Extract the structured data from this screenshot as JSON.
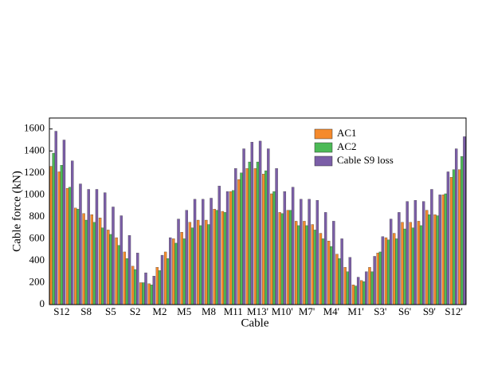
{
  "chart_data": {
    "type": "bar",
    "xlabel": "Cable",
    "ylabel": "Cable force (kN)",
    "categories": [
      null,
      "S12",
      null,
      null,
      "S8",
      null,
      null,
      "S5",
      null,
      null,
      "S2",
      null,
      null,
      "M2",
      null,
      null,
      "M5",
      null,
      null,
      "M8",
      null,
      null,
      "M11",
      null,
      null,
      "M13'",
      null,
      null,
      "M10'",
      null,
      null,
      "M7'",
      null,
      null,
      "M4'",
      null,
      null,
      "M1'",
      null,
      null,
      "S3'",
      null,
      null,
      "S6'",
      null,
      null,
      "S9'",
      null,
      null,
      "S12'",
      null
    ],
    "series": [
      {
        "name": "AC1",
        "color": "#f58a2c",
        "values": [
          1260,
          1210,
          1060,
          880,
          830,
          820,
          790,
          680,
          610,
          480,
          350,
          200,
          190,
          340,
          480,
          600,
          660,
          750,
          770,
          770,
          870,
          850,
          1030,
          1140,
          1240,
          1240,
          1190,
          1010,
          840,
          860,
          760,
          760,
          730,
          650,
          580,
          460,
          340,
          180,
          220,
          340,
          470,
          610,
          650,
          750,
          750,
          760,
          860,
          820,
          1000,
          1160,
          1230
        ]
      },
      {
        "name": "AC2",
        "color": "#4cba56",
        "values": [
          1380,
          1270,
          1070,
          870,
          770,
          750,
          700,
          640,
          540,
          420,
          320,
          200,
          180,
          310,
          420,
          560,
          600,
          700,
          720,
          730,
          860,
          840,
          1040,
          1200,
          1300,
          1300,
          1220,
          1030,
          830,
          860,
          720,
          720,
          680,
          600,
          530,
          420,
          300,
          170,
          210,
          300,
          480,
          590,
          600,
          690,
          700,
          720,
          820,
          810,
          1010,
          1230,
          1350
        ]
      },
      {
        "name": "Cable S9 loss",
        "color": "#7b5ea7",
        "values": [
          1580,
          1500,
          1310,
          1100,
          1050,
          1050,
          1020,
          890,
          810,
          630,
          470,
          290,
          260,
          450,
          610,
          780,
          860,
          960,
          960,
          970,
          1080,
          1030,
          1240,
          1420,
          1480,
          1490,
          1420,
          1240,
          1030,
          1070,
          960,
          960,
          950,
          840,
          760,
          600,
          430,
          250,
          300,
          440,
          620,
          780,
          840,
          940,
          950,
          940,
          1050,
          1000,
          1210,
          1420,
          1530
        ]
      }
    ],
    "ylim": [
      0,
      1700
    ],
    "yticks": [
      0,
      200,
      400,
      600,
      800,
      1000,
      1200,
      1400,
      1600
    ],
    "legend": "upper-right"
  }
}
